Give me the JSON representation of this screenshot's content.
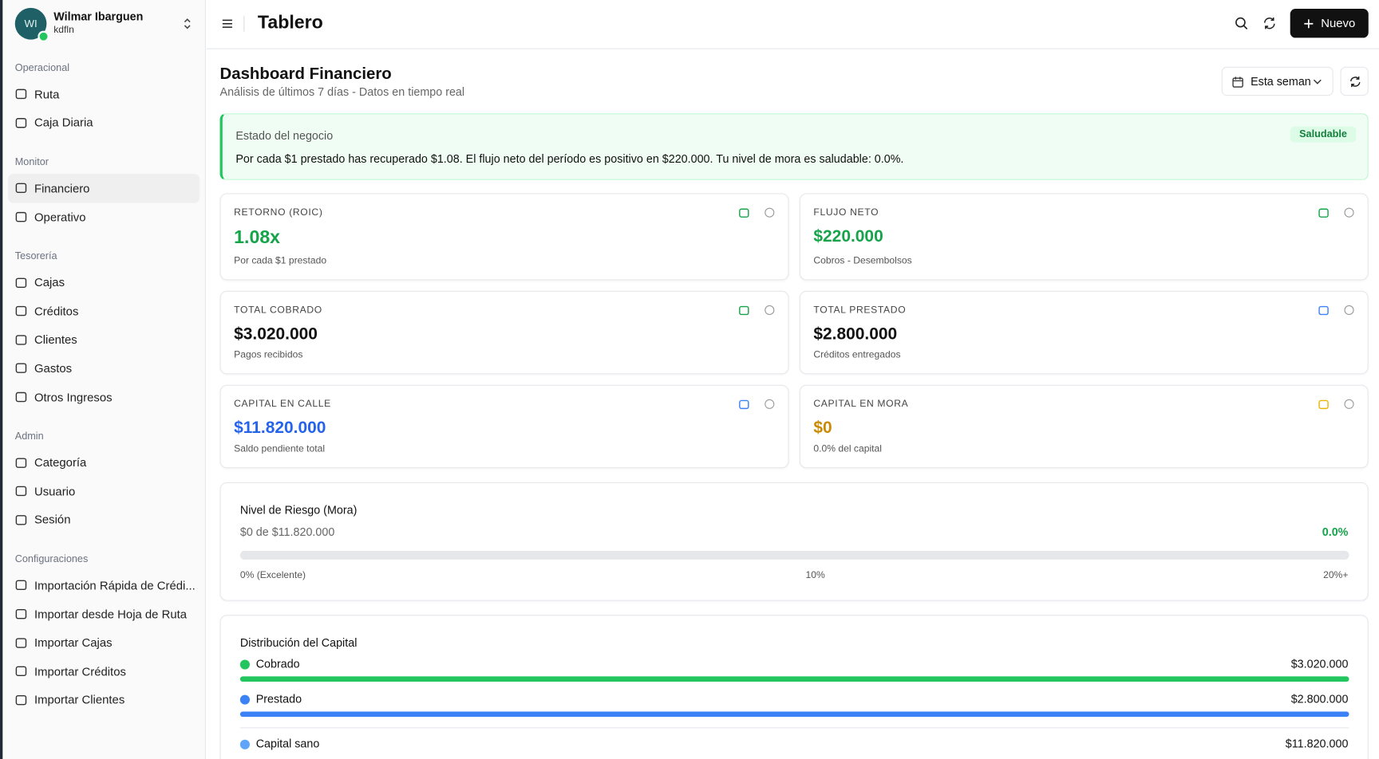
{
  "sidebar": {
    "user": {
      "initials": "WI",
      "name": "Wilmar Ibarguen",
      "org": "kdfln"
    },
    "sections": [
      {
        "title": "Operacional",
        "items": [
          "Ruta",
          "Caja Diaria"
        ]
      },
      {
        "title": "Monitor",
        "items": [
          "Financiero",
          "Operativo"
        ]
      },
      {
        "title": "Tesorería",
        "items": [
          "Cajas",
          "Créditos",
          "Clientes",
          "Gastos",
          "Otros Ingresos"
        ]
      },
      {
        "title": "Admin",
        "items": [
          "Categoría",
          "Usuario",
          "Sesión"
        ]
      },
      {
        "title": "Configuraciones",
        "items": [
          "Importación Rápida de Crédi...",
          "Importar desde Hoja de Ruta",
          "Importar Cajas",
          "Importar Créditos",
          "Importar Clientes"
        ]
      }
    ]
  },
  "header": {
    "title": "Tablero",
    "new_button": "Nuevo"
  },
  "dashboard": {
    "title": "Dashboard Financiero",
    "subtitle": "Análisis de últimos 7 días - Datos en tiempo real",
    "period": "Esta semana",
    "status": {
      "label": "Estado del negocio",
      "badge": "Saludable",
      "message": "Por cada $1 prestado has recuperado $1.08. El flujo neto del período es positivo en $220.000. Tu nivel de mora es saludable: 0.0%."
    },
    "metrics": [
      {
        "label": "RETORNO (ROIC)",
        "value": "1.08x",
        "note": "Por cada $1 prestado"
      },
      {
        "label": "FLUJO NETO",
        "value": "$220.000",
        "note": "Cobros - Desembolsos"
      },
      {
        "label": "TOTAL COBRADO",
        "value": "$3.020.000",
        "note": "Pagos recibidos"
      },
      {
        "label": "TOTAL PRESTADO",
        "value": "$2.800.000",
        "note": "Créditos entregados"
      },
      {
        "label": "CAPITAL EN CALLE",
        "value": "$11.820.000",
        "note": "Saldo pendiente total"
      },
      {
        "label": "CAPITAL EN MORA",
        "value": "$0",
        "note": "0.0% del capital"
      }
    ],
    "risk": {
      "title": "Nivel de Riesgo (Mora)",
      "amount": "$0 de $11.820.000",
      "percent": "0.0%",
      "scale": [
        "0% (Excelente)",
        "10%",
        "20%+"
      ]
    },
    "distribution": {
      "title": "Distribución del Capital",
      "items": [
        {
          "name": "Cobrado",
          "value": "$3.020.000"
        },
        {
          "name": "Prestado",
          "value": "$2.800.000"
        },
        {
          "name": "Capital sano",
          "value": "$11.820.000"
        }
      ]
    }
  }
}
